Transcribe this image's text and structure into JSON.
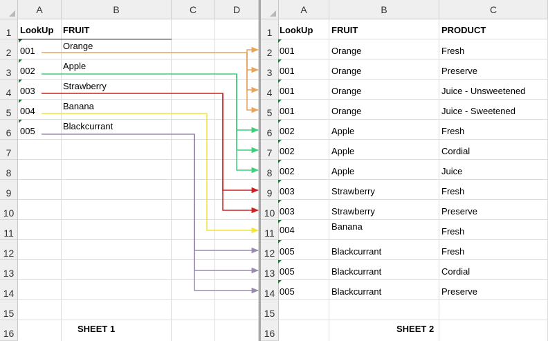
{
  "sheet1": {
    "columns": [
      "A",
      "B",
      "C",
      "D"
    ],
    "rows": [
      "1",
      "2",
      "3",
      "4",
      "5",
      "6",
      "7",
      "8",
      "9",
      "10",
      "11",
      "12",
      "13",
      "14",
      "15",
      "16"
    ],
    "header": {
      "lookup": "LookUp",
      "fruit": "FRUIT"
    },
    "data": [
      {
        "code": "001",
        "fruit": "Orange"
      },
      {
        "code": "002",
        "fruit": "Apple"
      },
      {
        "code": "003",
        "fruit": "Strawberry"
      },
      {
        "code": "004",
        "fruit": "Banana"
      },
      {
        "code": "005",
        "fruit": "Blackcurrant"
      }
    ],
    "label": "SHEET 1"
  },
  "sheet2": {
    "columns": [
      "A",
      "B",
      "C"
    ],
    "rows": [
      "1",
      "2",
      "3",
      "4",
      "5",
      "6",
      "7",
      "8",
      "9",
      "10",
      "11",
      "12",
      "13",
      "14",
      "15",
      "16"
    ],
    "header": {
      "lookup": "LookUp",
      "fruit": "FRUIT",
      "product": "PRODUCT"
    },
    "data": [
      {
        "code": "001",
        "fruit": "Orange",
        "product": "Fresh"
      },
      {
        "code": "001",
        "fruit": "Orange",
        "product": "Preserve"
      },
      {
        "code": "001",
        "fruit": "Orange",
        "product": "Juice - Unsweetened"
      },
      {
        "code": "001",
        "fruit": "Orange",
        "product": "Juice - Sweetened"
      },
      {
        "code": "002",
        "fruit": "Apple",
        "product": "Fresh"
      },
      {
        "code": "002",
        "fruit": "Apple",
        "product": "Cordial"
      },
      {
        "code": "002",
        "fruit": "Apple",
        "product": "Juice"
      },
      {
        "code": "003",
        "fruit": "Strawberry",
        "product": "Fresh"
      },
      {
        "code": "003",
        "fruit": "Strawberry",
        "product": "Preserve"
      },
      {
        "code": "004",
        "fruit": "Banana",
        "product": "Fresh"
      },
      {
        "code": "005",
        "fruit": "Blackcurrant",
        "product": "Fresh"
      },
      {
        "code": "005",
        "fruit": "Blackcurrant",
        "product": "Cordial"
      },
      {
        "code": "005",
        "fruit": "Blackcurrant",
        "product": "Preserve"
      }
    ],
    "label": "SHEET 2"
  },
  "arrow_colors": {
    "001": "#e8a35c",
    "002": "#3ecf7a",
    "003": "#cc2222",
    "004": "#f5e43a",
    "005": "#9b8ab0"
  }
}
